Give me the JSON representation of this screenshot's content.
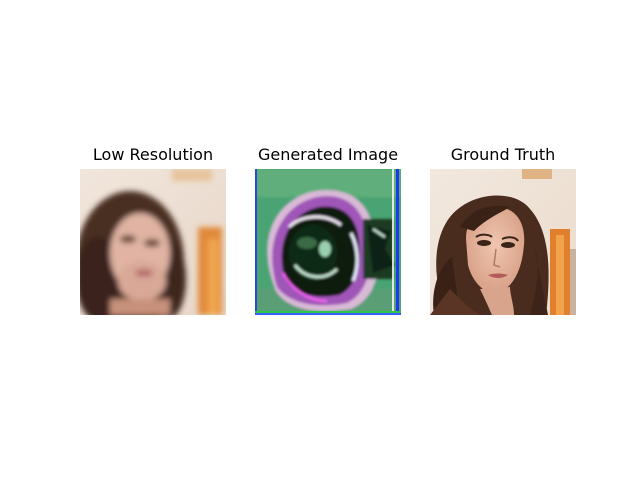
{
  "figure": {
    "panels": [
      {
        "title": "Low Resolution",
        "image_name": "low-resolution-face-image"
      },
      {
        "title": "Generated Image",
        "image_name": "generated-artifact-face-image"
      },
      {
        "title": "Ground Truth",
        "image_name": "ground-truth-face-image"
      }
    ]
  }
}
